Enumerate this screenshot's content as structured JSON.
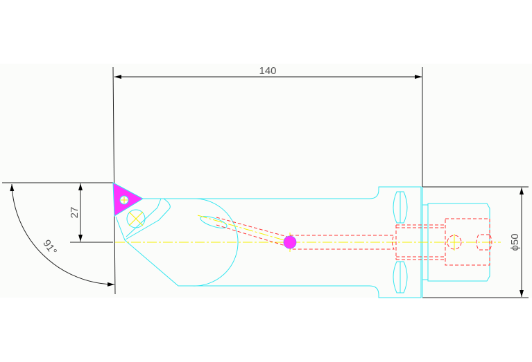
{
  "drawing": {
    "dimensions": {
      "overall_length": "140",
      "offset": "27",
      "angle": "91°",
      "diameter": "ϕ50"
    },
    "colors": {
      "outline": "#33e6f0",
      "centerline": "#f5f000",
      "hidden": "#ff3333",
      "insert": "#ff33ff",
      "dimension": "#000000"
    }
  }
}
